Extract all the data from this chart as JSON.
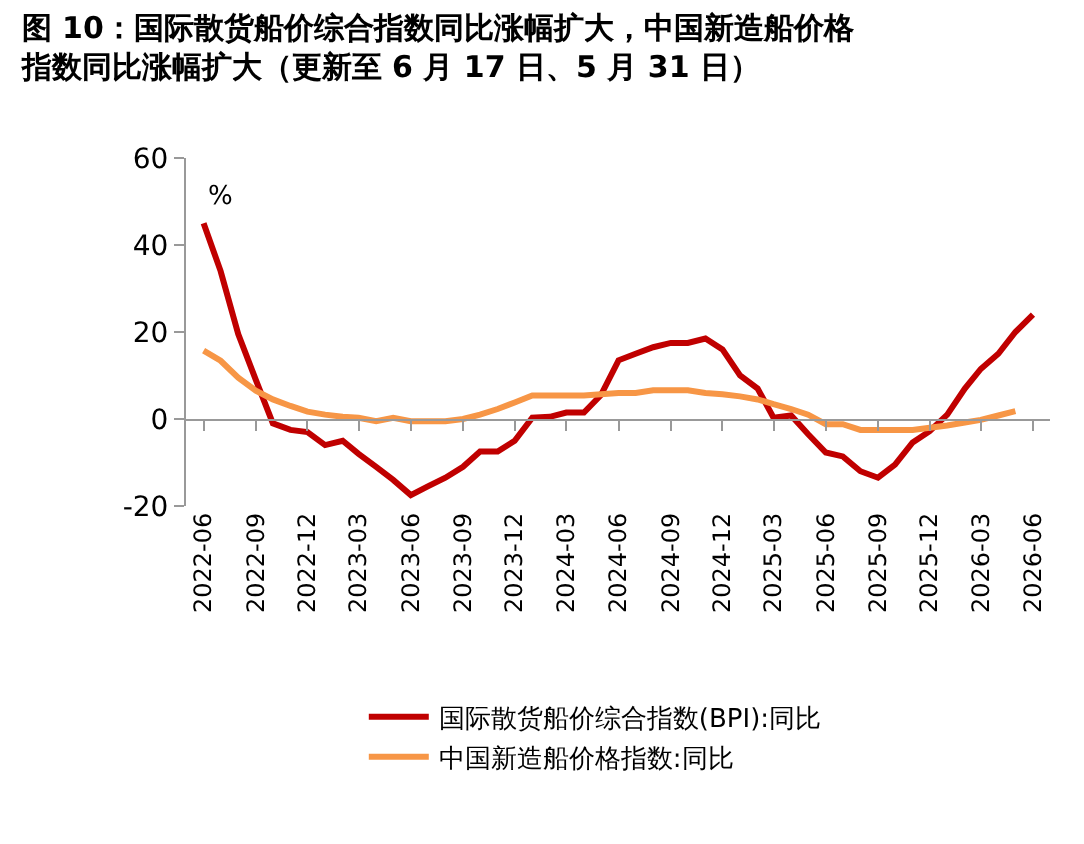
{
  "chart_data": {
    "type": "line",
    "title": "图 10：国际散货船价综合指数同比涨幅扩大，中国新造船价格指数同比涨幅扩大（更新至 6 月 17 日、5 月 31 日）",
    "x": [
      "2022-06",
      "2022-07",
      "2022-08",
      "2022-09",
      "2022-10",
      "2022-11",
      "2022-12",
      "2023-01",
      "2023-02",
      "2023-03",
      "2023-04",
      "2023-05",
      "2023-06",
      "2023-07",
      "2023-08",
      "2023-09",
      "2023-10",
      "2023-11",
      "2023-12",
      "2024-01",
      "2024-02",
      "2024-03",
      "2024-04",
      "2024-05",
      "2024-06",
      "2024-07",
      "2024-08",
      "2024-09",
      "2024-10",
      "2024-11",
      "2024-12",
      "2025-01",
      "2025-02",
      "2025-03",
      "2025-04",
      "2025-05",
      "2025-06",
      "2025-07",
      "2025-08",
      "2025-09",
      "2025-10",
      "2025-11",
      "2025-12",
      "2026-01",
      "2026-02",
      "2026-03",
      "2026-04",
      "2026-05",
      "2026-06"
    ],
    "series": [
      {
        "name": "国际散货船价综合指数(BPI):同比",
        "color": "#c00000",
        "values": [
          45,
          34,
          19.5,
          9,
          -1,
          -2.5,
          -3,
          -6,
          -5,
          -8,
          -11,
          -14,
          -17.5,
          -15.5,
          -13.5,
          -11,
          -7.5,
          -7.5,
          -5,
          0.3,
          0.5,
          1.5,
          1.5,
          5.5,
          13.5,
          15,
          16.5,
          17.5,
          17.5,
          18.5,
          16,
          10,
          7,
          0.3,
          0.8,
          -3.5,
          -7.7,
          -8.6,
          -12,
          -13.5,
          -10.5,
          -5.4,
          -2.8,
          1,
          7,
          11.5,
          15,
          20,
          24
        ]
      },
      {
        "name": "中国新造船价格指数:同比",
        "color": "#f79646",
        "values": [
          15.7,
          13.4,
          9.5,
          6.5,
          4.5,
          3,
          1.7,
          1,
          0.5,
          0.3,
          -0.5,
          0.3,
          -0.5,
          -0.5,
          -0.5,
          0,
          1,
          2.3,
          3.8,
          5.4,
          5.4,
          5.4,
          5.4,
          5.7,
          6,
          6,
          6.6,
          6.6,
          6.6,
          6,
          5.7,
          5.2,
          4.5,
          3.4,
          2.3,
          1,
          -1.2,
          -1.2,
          -2.5,
          -2.5,
          -2.5,
          -2.5,
          -2,
          -1.5,
          -0.8,
          -0.2,
          0.8,
          1.8,
          null
        ]
      }
    ],
    "annotations": [
      "%"
    ],
    "xlim": [
      "2022-05",
      "2026-07"
    ],
    "xticks": [
      "2022-06",
      "2022-09",
      "2022-12",
      "2023-03",
      "2023-06",
      "2023-09",
      "2023-12",
      "2024-03",
      "2024-06",
      "2024-09",
      "2024-12",
      "2025-03",
      "2025-06",
      "2025-09",
      "2025-12",
      "2026-03",
      "2026-06"
    ],
    "ylim": [
      -20,
      60
    ],
    "yticks": [
      -20,
      0,
      20,
      40,
      60
    ],
    "legend": "bottom",
    "marker": "none",
    "line_style": "solid"
  }
}
